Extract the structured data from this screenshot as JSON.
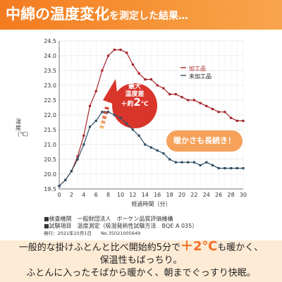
{
  "header": {
    "title_main": "中綿の温度変化",
    "title_sub": "を測定した結果…"
  },
  "chart_data": {
    "type": "line",
    "x": [
      0,
      1,
      2,
      3,
      4,
      5,
      6,
      7,
      8,
      9,
      10,
      11,
      12,
      13,
      14,
      15,
      16,
      17,
      18,
      19,
      20,
      21,
      22,
      23,
      24,
      25,
      26,
      27,
      28,
      29,
      30
    ],
    "xticks": [
      0,
      2,
      4,
      6,
      8,
      10,
      12,
      14,
      16,
      18,
      20,
      22,
      24,
      26,
      28,
      30
    ],
    "xlabel": "経過時間（分）",
    "ylabel": "温度（℃）",
    "ylim": [
      19.5,
      24.5
    ],
    "yticks": [
      "19.5",
      "20.0",
      "20.5",
      "21.0",
      "21.5",
      "22.0",
      "22.5",
      "23.0",
      "23.5",
      "24.0",
      "24.5"
    ],
    "grid": true,
    "series": [
      {
        "name": "加工品",
        "color": "#a6262b",
        "values": [
          19.6,
          19.8,
          20.1,
          20.6,
          21.3,
          22.3,
          22.8,
          23.5,
          24.0,
          24.2,
          24.2,
          24.1,
          23.7,
          23.4,
          23.2,
          23.2,
          23.0,
          22.9,
          22.7,
          22.7,
          22.6,
          22.5,
          22.5,
          22.4,
          22.3,
          22.2,
          22.1,
          22.1,
          21.9,
          21.8,
          21.8
        ]
      },
      {
        "name": "未加工品",
        "color": "#2e4e63",
        "values": [
          19.6,
          19.8,
          20.1,
          20.5,
          21.0,
          21.6,
          21.8,
          22.1,
          22.1,
          22.0,
          21.9,
          21.7,
          21.5,
          21.3,
          21.0,
          20.9,
          20.8,
          20.7,
          20.5,
          20.4,
          20.4,
          20.4,
          20.4,
          20.3,
          20.4,
          20.3,
          20.2,
          20.2,
          20.2,
          20.2,
          20.2
        ]
      }
    ],
    "annotation": {
      "line1": "最大",
      "line2": "温度差",
      "prefix": "＋約",
      "value": "2",
      "unit": "℃"
    },
    "callout": "暖かさも長続き！"
  },
  "info": {
    "line1": "■検査機関　一般財団法人　ボーケン品質評価機構",
    "line2": "■試験項目　温度測定（吸湿発熱性試験方法　BQE A 035）",
    "line3": "発行：2021年10月1日　　No.35021005649"
  },
  "bottom": {
    "line1_pre": "一般的な掛けふとんと比べ開始約5分で",
    "line1_accent": "＋2℃",
    "line1_post": "も暖かく、",
    "line2": "保温性もばっちり。",
    "line3": "ふとんに入ったそばから暖かく、朝までぐっすり快眠。"
  },
  "colors": {
    "accent": "#f47b20",
    "processed": "#a6262b",
    "unprocessed": "#2e4e63",
    "bubble": "#f6a25a"
  }
}
